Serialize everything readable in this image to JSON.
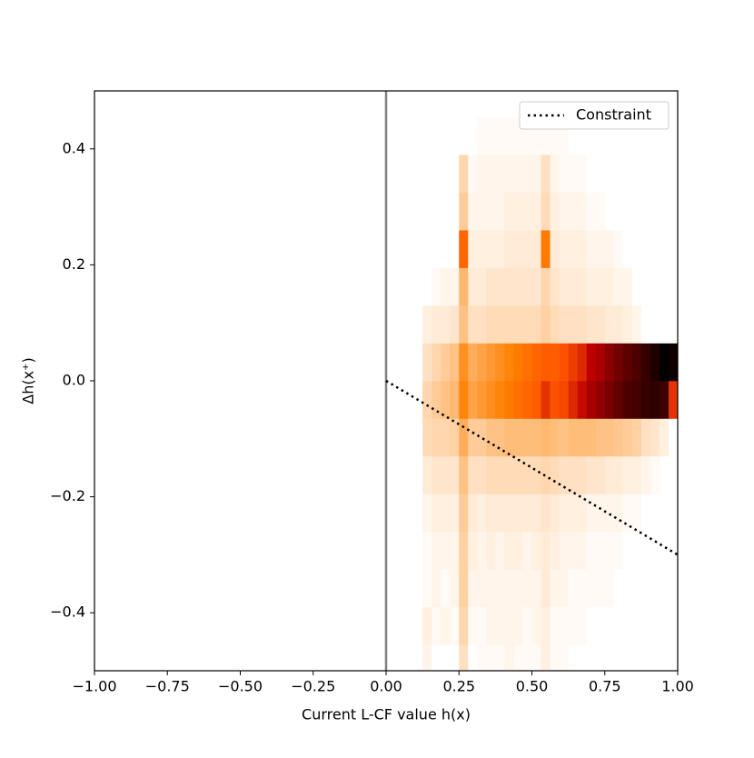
{
  "chart_data": {
    "type": "hist2d",
    "xlabel": "Current L-CF value h(x)",
    "ylabel": "Δh(x⁺)",
    "xlim": [
      -1,
      1
    ],
    "ylim": [
      -0.5,
      0.5
    ],
    "xticks": [
      {
        "value": -1,
        "label": "−1.00"
      },
      {
        "value": -0.75,
        "label": "−0.75"
      },
      {
        "value": -0.5,
        "label": "−0.50"
      },
      {
        "value": -0.25,
        "label": "−0.25"
      },
      {
        "value": 0,
        "label": "0.00"
      },
      {
        "value": 0.25,
        "label": "0.25"
      },
      {
        "value": 0.5,
        "label": "0.50"
      },
      {
        "value": 0.75,
        "label": "0.75"
      },
      {
        "value": 1,
        "label": "1.00"
      }
    ],
    "yticks": [
      {
        "value": -0.4,
        "label": "−0.4"
      },
      {
        "value": -0.2,
        "label": "−0.2"
      },
      {
        "value": 0,
        "label": "0.0"
      },
      0.2,
      0.4
    ],
    "cmap": "gist_heat_r",
    "xbins": [
      0.125,
      0.15625,
      0.1875,
      0.21875,
      0.25,
      0.28125,
      0.3125,
      0.34375,
      0.375,
      0.40625,
      0.4375,
      0.46875,
      0.5,
      0.53125,
      0.5625,
      0.59375,
      0.625,
      0.65625,
      0.6875,
      0.71875,
      0.75,
      0.78125,
      0.8125,
      0.84375,
      0.875,
      0.90625,
      0.9375,
      0.96875,
      1.0
    ],
    "ybins": [
      -0.52,
      -0.455,
      -0.39,
      -0.325,
      -0.26,
      -0.195,
      -0.13,
      -0.065,
      0,
      0.065,
      0.13,
      0.195,
      0.26,
      0.325,
      0.39,
      0.455
    ],
    "counts": [
      [
        2,
        0,
        0,
        0,
        6,
        0,
        1,
        1,
        1,
        2,
        1,
        1,
        1,
        3,
        1,
        1,
        0,
        0,
        0,
        0,
        0,
        0,
        0,
        0,
        0,
        0,
        0,
        0
      ],
      [
        3,
        1,
        2,
        1,
        8,
        1,
        1,
        2,
        2,
        2,
        2,
        1,
        2,
        3,
        1,
        1,
        1,
        1,
        0,
        0,
        0,
        0,
        0,
        0,
        0,
        0,
        0,
        0
      ],
      [
        1,
        2,
        1,
        2,
        9,
        2,
        2,
        2,
        2,
        2,
        2,
        2,
        2,
        4,
        2,
        2,
        1,
        1,
        1,
        1,
        1,
        0,
        0,
        0,
        0,
        0,
        0,
        0
      ],
      [
        1,
        2,
        2,
        2,
        9,
        3,
        2,
        3,
        2,
        3,
        3,
        2,
        3,
        4,
        3,
        2,
        2,
        2,
        1,
        1,
        1,
        1,
        0,
        0,
        0,
        0,
        0,
        0
      ],
      [
        2,
        3,
        3,
        3,
        10,
        4,
        3,
        4,
        4,
        4,
        4,
        4,
        4,
        5,
        4,
        3,
        3,
        3,
        2,
        2,
        2,
        2,
        1,
        1,
        0,
        0,
        0,
        0
      ],
      [
        4,
        5,
        5,
        5,
        12,
        6,
        6,
        7,
        7,
        7,
        7,
        7,
        7,
        8,
        7,
        6,
        6,
        6,
        5,
        5,
        4,
        4,
        3,
        3,
        2,
        1,
        0,
        0
      ],
      [
        7,
        8,
        8,
        9,
        16,
        10,
        10,
        12,
        12,
        13,
        13,
        13,
        13,
        14,
        13,
        12,
        13,
        13,
        13,
        12,
        12,
        11,
        10,
        9,
        6,
        5,
        3,
        0
      ],
      [
        8,
        10,
        12,
        14,
        24,
        18,
        20,
        22,
        24,
        26,
        28,
        30,
        32,
        40,
        34,
        36,
        42,
        48,
        56,
        62,
        68,
        74,
        80,
        82,
        86,
        88,
        84,
        40
      ],
      [
        6,
        8,
        10,
        12,
        22,
        16,
        18,
        20,
        22,
        24,
        26,
        28,
        30,
        32,
        32,
        34,
        38,
        42,
        50,
        56,
        64,
        70,
        76,
        80,
        86,
        92,
        100,
        96
      ],
      [
        3,
        4,
        4,
        5,
        12,
        6,
        6,
        7,
        7,
        7,
        7,
        7,
        7,
        9,
        7,
        6,
        6,
        6,
        5,
        5,
        4,
        4,
        3,
        2,
        0,
        0,
        0,
        0
      ],
      [
        0,
        1,
        2,
        2,
        14,
        4,
        4,
        5,
        5,
        5,
        5,
        5,
        5,
        8,
        5,
        4,
        4,
        4,
        3,
        3,
        3,
        2,
        2,
        0,
        0,
        0,
        0,
        0
      ],
      [
        0,
        0,
        0,
        0,
        30,
        3,
        3,
        3,
        3,
        4,
        4,
        4,
        4,
        26,
        4,
        3,
        3,
        3,
        2,
        2,
        2,
        1,
        0,
        0,
        0,
        0,
        0,
        0
      ],
      [
        0,
        0,
        0,
        0,
        10,
        2,
        2,
        2,
        2,
        3,
        3,
        3,
        3,
        7,
        3,
        2,
        2,
        2,
        1,
        1,
        0,
        0,
        0,
        0,
        0,
        0,
        0,
        0
      ],
      [
        0,
        0,
        0,
        0,
        8,
        1,
        2,
        2,
        2,
        2,
        2,
        2,
        2,
        6,
        2,
        1,
        1,
        1,
        0,
        0,
        0,
        0,
        0,
        0,
        0,
        0,
        0,
        0
      ],
      [
        0,
        0,
        0,
        0,
        0,
        0,
        1,
        1,
        1,
        1,
        1,
        1,
        1,
        1,
        1,
        1,
        0,
        0,
        0,
        0,
        0,
        0,
        0,
        0,
        0,
        0,
        0,
        0
      ]
    ],
    "vline": {
      "x": 0,
      "color": "#808080"
    },
    "series": [
      {
        "name": "Constraint",
        "color": "#000000",
        "x": [
          0,
          1
        ],
        "values": [
          0,
          -0.3
        ]
      }
    ],
    "legend": "upper right"
  }
}
